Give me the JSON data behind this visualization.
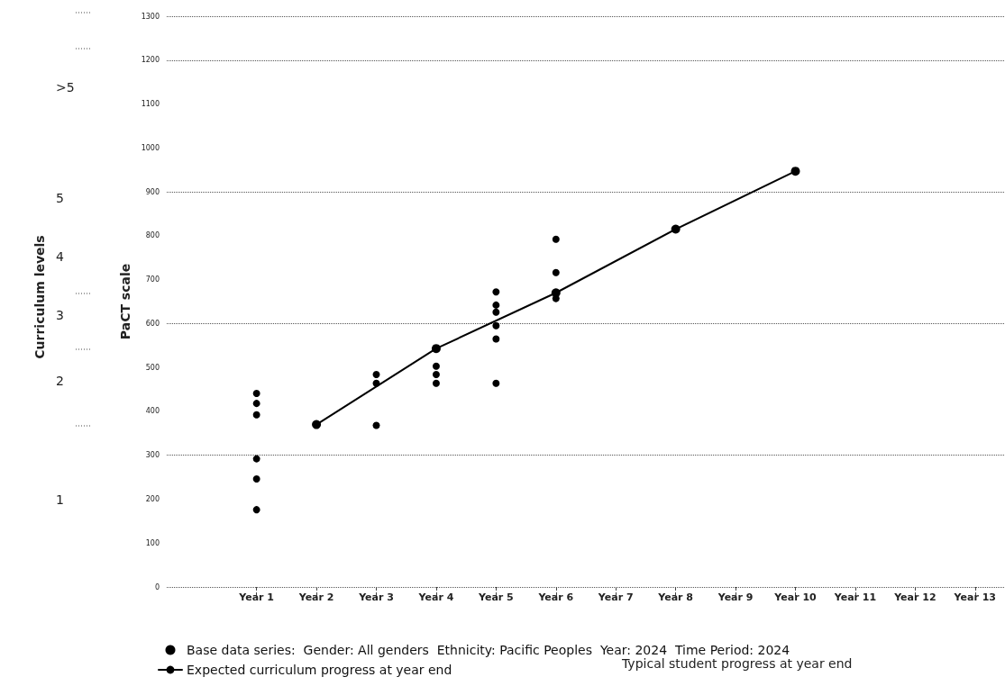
{
  "chart_data": {
    "type": "line",
    "ylabel": "PaCT scale",
    "categories": [
      null,
      "Year 1",
      "Year 2",
      "Year 3",
      "Year 4",
      "Year 5",
      "Year 6",
      "Year 7",
      "Year 8",
      "Year 9",
      "Year 10",
      "Year 11",
      "Year 12",
      "Year 13"
    ],
    "series": [
      {
        "name": "Base data series:  Gender: All genders  Ethnicity: Pacific Peoples  Year: 2024  Time Period: 2024",
        "type": "scatter",
        "color": "#000000",
        "marker": "circle",
        "x": [
          "Year 1",
          "Year 1",
          "Year 1",
          "Year 1",
          "Year 1",
          "Year 1",
          "Year 3",
          "Year 3",
          "Year 3",
          "Year 4",
          "Year 4",
          "Year 4",
          "Year 5",
          "Year 5",
          "Year 5",
          "Year 5",
          "Year 5",
          "Year 5",
          "Year 6",
          "Year 6",
          "Year 6"
        ],
        "values": [
          441,
          418,
          392,
          292,
          246,
          176,
          484,
          464,
          368,
          503,
          484,
          464,
          672,
          642,
          626,
          595,
          565,
          464,
          792,
          716,
          657
        ]
      },
      {
        "name": "Expected curriculum progress at year end",
        "color": "#000000",
        "marker": "circle",
        "line_style": "solid",
        "values": [
          null,
          null,
          370,
          null,
          543,
          null,
          670,
          null,
          815,
          null,
          947,
          null,
          null,
          null
        ]
      }
    ],
    "ylim": [
      0,
      1300
    ],
    "yticks": [
      0,
      100,
      200,
      300,
      400,
      500,
      600,
      700,
      800,
      900,
      1000,
      1100,
      1200,
      1300
    ],
    "grid": "y",
    "legend": "bottom",
    "annotations": [
      "Curriculum levels",
      ">5",
      "5",
      "4",
      "3",
      "2",
      "1",
      "Typical student progress at year end"
    ]
  }
}
